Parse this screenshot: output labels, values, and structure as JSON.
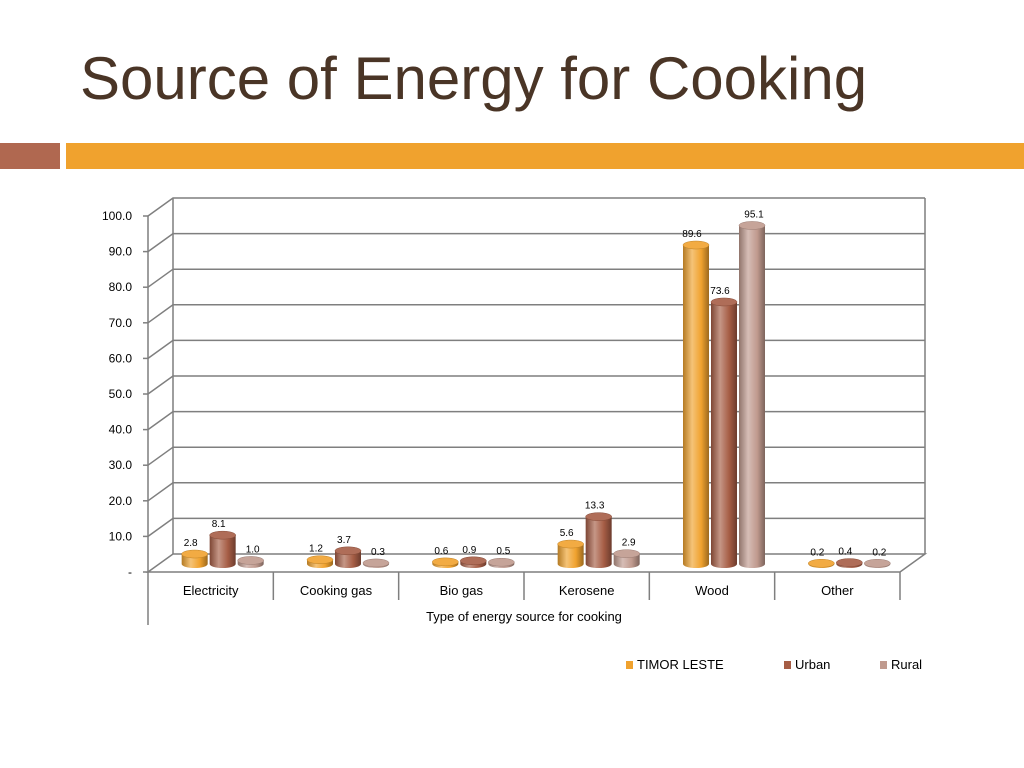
{
  "title": "Source of Energy for Cooking",
  "colors": {
    "title": "#4a3526",
    "band_left": "#b06850",
    "band_right": "#f0a22e",
    "gridline": "#7f7f7f"
  },
  "chart_data": {
    "type": "bar",
    "title": "",
    "xlabel": "Type of energy source for cooking",
    "ylabel": "",
    "ylim": [
      0,
      100
    ],
    "yticks": [
      0,
      10,
      20,
      30,
      40,
      50,
      60,
      70,
      80,
      90,
      100
    ],
    "ytick_labels": [
      "-",
      "10.0",
      "20.0",
      "30.0",
      "40.0",
      "50.0",
      "60.0",
      "70.0",
      "80.0",
      "90.0",
      "100.0"
    ],
    "grid": true,
    "legend_position": "bottom-right",
    "categories": [
      "Electricity",
      "Cooking gas",
      "Bio gas",
      "Kerosene",
      "Wood",
      "Other"
    ],
    "series": [
      {
        "name": "TIMOR LESTE",
        "color": "#f0a22e",
        "values": [
          2.8,
          1.2,
          0.6,
          5.6,
          89.6,
          0.2
        ]
      },
      {
        "name": "Urban",
        "color": "#a65d45",
        "values": [
          8.1,
          3.7,
          0.9,
          13.3,
          73.6,
          0.4
        ]
      },
      {
        "name": "Rural",
        "color": "#c09a8e",
        "values": [
          1.0,
          0.3,
          0.5,
          2.9,
          95.1,
          0.2
        ]
      }
    ]
  }
}
